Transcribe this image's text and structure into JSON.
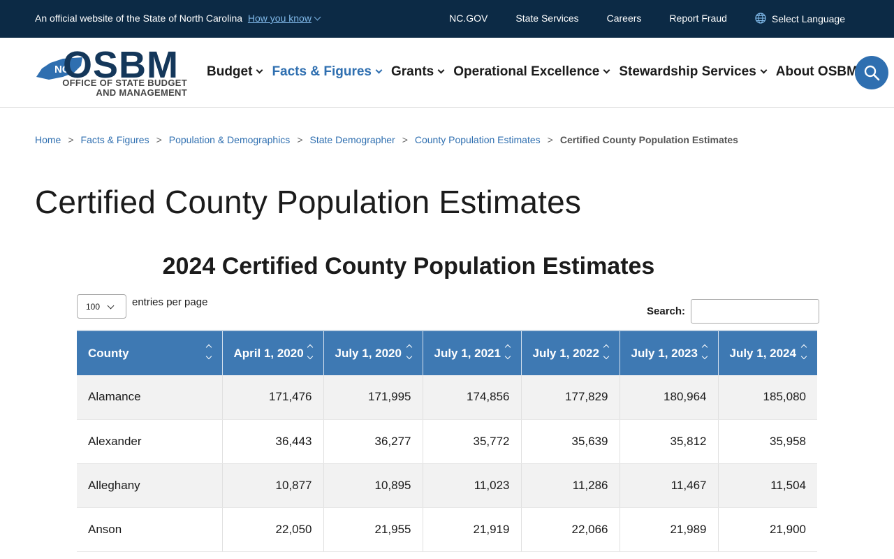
{
  "banner": {
    "official_text": "An official website of the State of North Carolina",
    "how_you_know": "How you know",
    "links": [
      "NC.GOV",
      "State Services",
      "Careers",
      "Report Fraud"
    ],
    "language": "Select Language"
  },
  "logo": {
    "badge": "NC",
    "name": "OSBM",
    "subtitle_line1": "OFFICE OF STATE BUDGET",
    "subtitle_line2": "AND MANAGEMENT"
  },
  "nav": [
    {
      "label": "Budget",
      "active": false
    },
    {
      "label": "Facts & Figures",
      "active": true
    },
    {
      "label": "Grants",
      "active": false
    },
    {
      "label": "Operational Excellence",
      "active": false
    },
    {
      "label": "Stewardship Services",
      "active": false
    },
    {
      "label": "About OSBM",
      "active": false
    }
  ],
  "breadcrumb": {
    "links": [
      "Home",
      "Facts & Figures",
      "Population & Demographics",
      "State Demographer",
      "County Population Estimates"
    ],
    "current": "Certified County Population Estimates"
  },
  "page_title": "Certified County Population Estimates",
  "table_title": "2024 Certified County Population Estimates",
  "length": {
    "value": "100",
    "label": "entries per page"
  },
  "search": {
    "label": "Search:",
    "value": ""
  },
  "table": {
    "headers": [
      "County",
      "April 1, 2020",
      "July 1, 2020",
      "July 1, 2021",
      "July 1, 2022",
      "July 1, 2023",
      "July 1, 2024"
    ],
    "rows": [
      [
        "Alamance",
        "171,476",
        "171,995",
        "174,856",
        "177,829",
        "180,964",
        "185,080"
      ],
      [
        "Alexander",
        "36,443",
        "36,277",
        "35,772",
        "35,639",
        "35,812",
        "35,958"
      ],
      [
        "Alleghany",
        "10,877",
        "10,895",
        "11,023",
        "11,286",
        "11,467",
        "11,504"
      ],
      [
        "Anson",
        "22,050",
        "21,955",
        "21,919",
        "22,066",
        "21,989",
        "21,900"
      ]
    ]
  },
  "colors": {
    "banner_bg": "#0c2a45",
    "accent": "#2f6fb0",
    "table_header": "#3e79b3"
  }
}
